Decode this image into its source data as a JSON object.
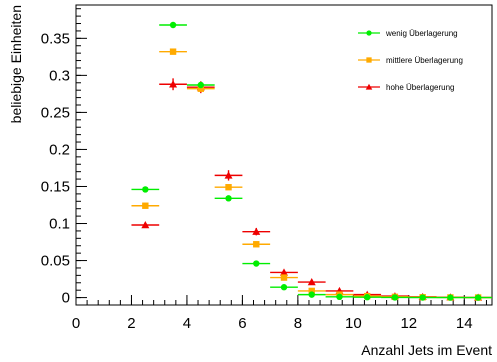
{
  "chart_data": {
    "type": "scatter",
    "title": "",
    "xlabel": "Anzahl Jets im Event",
    "ylabel": "beliebige Einheiten",
    "xlim": [
      0,
      15
    ],
    "ylim": [
      -0.01,
      0.395
    ],
    "xticks": [
      0,
      2,
      4,
      6,
      8,
      10,
      12,
      14
    ],
    "xtick_labels": [
      "0",
      "2",
      "4",
      "6",
      "8",
      "10",
      "12",
      "14"
    ],
    "yticks": [
      0,
      0.05,
      0.1,
      0.15,
      0.2,
      0.25,
      0.3,
      0.35
    ],
    "ytick_labels": [
      "0",
      "0.05",
      "0.1",
      "0.15",
      "0.2",
      "0.25",
      "0.3",
      "0.35"
    ],
    "grid": false,
    "legend_position": "top-right",
    "x": [
      2.5,
      3.5,
      4.5,
      5.5,
      6.5,
      7.5,
      8.5,
      9.5,
      10.5,
      11.5,
      12.5,
      13.5,
      14.5
    ],
    "x_bin_halfwidth": 0.5,
    "series": [
      {
        "name": "wenig Überlagerung",
        "color": "#00ee00",
        "marker": "circle",
        "values": [
          0.146,
          0.368,
          0.287,
          0.134,
          0.046,
          0.014,
          0.004,
          0.001,
          0.0005,
          0.0002,
          0.0001,
          0.0,
          0.0
        ]
      },
      {
        "name": "mittlere Überlagerung",
        "color": "#ffaa00",
        "marker": "square",
        "values": [
          0.124,
          0.332,
          0.282,
          0.149,
          0.072,
          0.027,
          0.009,
          0.004,
          0.002,
          0.001,
          0.0005,
          0.0002,
          0.0001
        ]
      },
      {
        "name": "hohe Überlagerung",
        "color": "#ee0000",
        "marker": "triangle",
        "values": [
          0.098,
          0.288,
          0.284,
          0.165,
          0.089,
          0.034,
          0.021,
          0.009,
          0.004,
          0.002,
          0.001,
          0.0005,
          0.0002
        ],
        "y_error": [
          0.003,
          0.008,
          0.008,
          0.007,
          0.005,
          0.003,
          0.002,
          0.001,
          0.001,
          0.0005,
          0.0003,
          0.0002,
          0.0001
        ]
      }
    ]
  }
}
